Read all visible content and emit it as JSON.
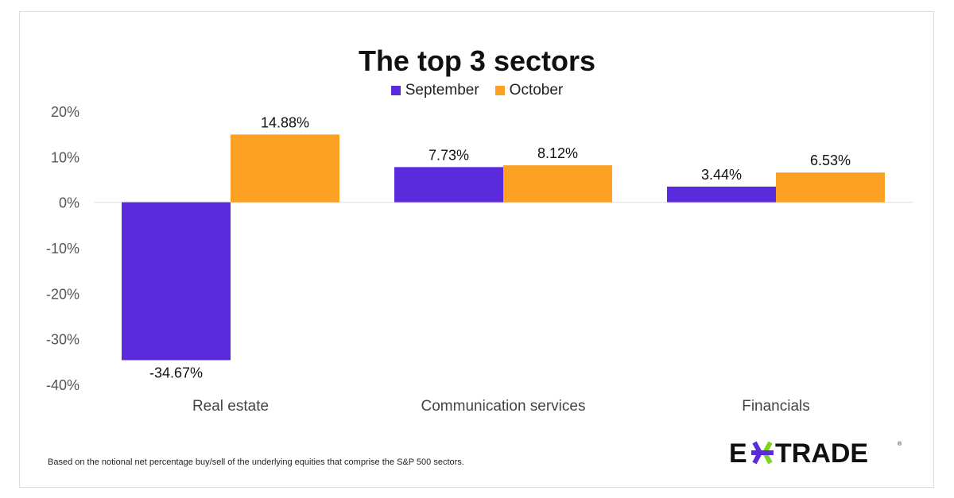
{
  "chart_data": {
    "type": "bar",
    "title": "The top 3 sectors",
    "categories": [
      "Real estate",
      "Communication services",
      "Financials"
    ],
    "series": [
      {
        "name": "September",
        "color": "#5a2bdc",
        "values": [
          -34.67,
          7.73,
          3.44
        ],
        "labels": [
          "-34.67%",
          "7.73%",
          "3.44%"
        ]
      },
      {
        "name": "October",
        "color": "#fca124",
        "values": [
          14.88,
          8.12,
          6.53
        ],
        "labels": [
          "14.88%",
          "8.12%",
          "6.53%"
        ]
      }
    ],
    "ylim": [
      -40,
      20
    ],
    "yticks": [
      20,
      10,
      0,
      -10,
      -20,
      -30,
      -40
    ],
    "ytick_labels": [
      "20%",
      "10%",
      "0%",
      "-10%",
      "-20%",
      "-30%",
      "-40%"
    ],
    "xlabel": "",
    "ylabel": "",
    "grid": false,
    "legend_position": "top-center"
  },
  "footnote": "Based on the notional net percentage buy/sell of the underlying equities that comprise the S&P 500 sectors.",
  "logo": {
    "text": "E*TRADE",
    "left": "E",
    "right": "TRADE"
  }
}
